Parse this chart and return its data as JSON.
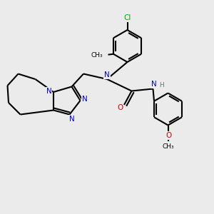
{
  "background_color": "#ebebeb",
  "atom_colors": {
    "C": "#000000",
    "N": "#0000cc",
    "O": "#cc0000",
    "Cl": "#00aa00",
    "H": "#607878",
    "CH3": "#000000"
  },
  "figsize": [
    3.0,
    3.0
  ],
  "dpi": 100
}
